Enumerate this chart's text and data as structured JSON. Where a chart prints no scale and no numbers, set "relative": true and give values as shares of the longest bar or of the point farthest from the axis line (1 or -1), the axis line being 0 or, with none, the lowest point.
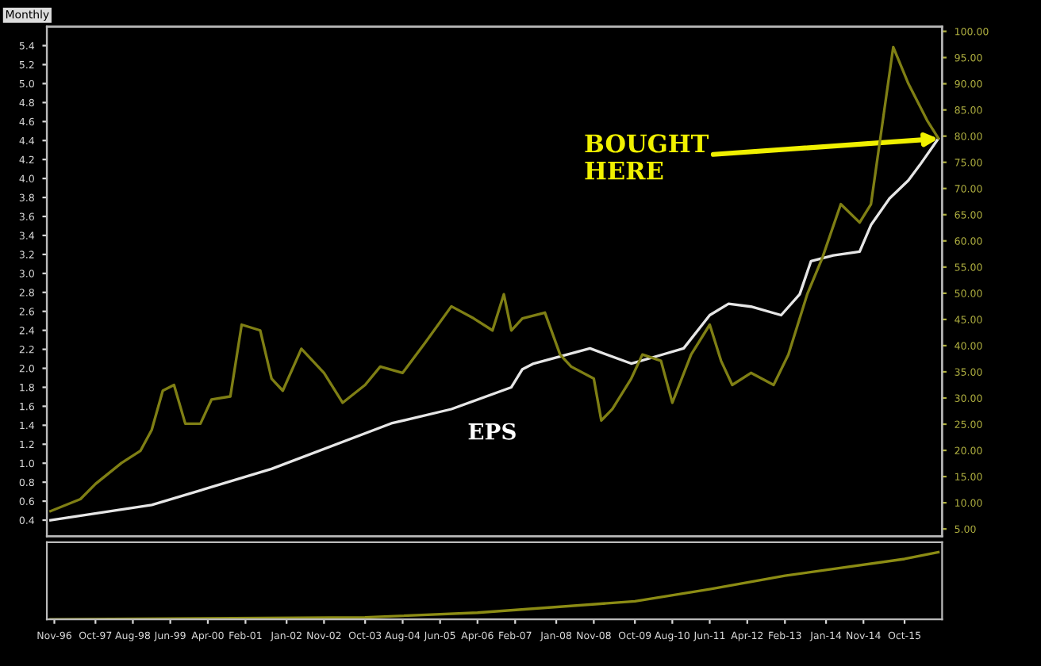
{
  "chart_data": [
    {
      "type": "line",
      "xlim": [
        "1996-09",
        "2016-08"
      ],
      "tick_labels": "y",
      "legend": false,
      "grid": false,
      "ylim": [
        0.23,
        5.6
      ],
      "yticks": [
        0.4,
        0.6,
        0.8,
        {
          "value": 1,
          "label": "1.0"
        },
        1.2,
        1.4,
        1.6,
        1.8,
        {
          "value": 2,
          "label": "2.0"
        },
        2.2,
        2.4,
        2.6,
        2.8,
        {
          "value": 3,
          "label": "3.0"
        },
        3.2,
        3.4,
        3.6,
        3.8,
        {
          "value": 4,
          "label": "4.0"
        },
        4.2,
        4.4,
        4.6,
        4.8,
        {
          "value": 5,
          "label": "5.0"
        },
        5.2,
        5.4
      ],
      "y2lim": [
        3.6,
        100.9
      ],
      "y2ticks": [
        {
          "value": 5,
          "label": "5.00"
        },
        {
          "value": 10,
          "label": "10.00"
        },
        {
          "value": 15,
          "label": "15.00"
        },
        {
          "value": 20,
          "label": "20.00"
        },
        {
          "value": 25,
          "label": "25.00"
        },
        {
          "value": 30,
          "label": "30.00"
        },
        {
          "value": 35,
          "label": "35.00"
        },
        {
          "value": 40,
          "label": "40.00"
        },
        {
          "value": 45,
          "label": "45.00"
        },
        {
          "value": 50,
          "label": "50.00"
        },
        {
          "value": 55,
          "label": "55.00"
        },
        {
          "value": 60,
          "label": "60.00"
        },
        {
          "value": 65,
          "label": "65.00"
        },
        {
          "value": 70,
          "label": "70.00"
        },
        {
          "value": 75,
          "label": "75.00"
        },
        {
          "value": 80,
          "label": "80.00"
        },
        {
          "value": 85,
          "label": "85.00"
        },
        {
          "value": 90,
          "label": "90.00"
        },
        {
          "value": 95,
          "label": "95.00"
        },
        {
          "value": 100,
          "label": "100.00"
        }
      ],
      "series": [
        {
          "color": "#7f7f14",
          "axis": "y2",
          "x": [
            "1996-10",
            "1997-06",
            "1997-10",
            "1998-05",
            "1998-10",
            "1999-01",
            "1999-04",
            "1999-07",
            "1999-10",
            "2000-02",
            "2000-05",
            "2000-10",
            "2001-01",
            "2001-06",
            "2001-09",
            "2001-12",
            "2002-05",
            "2002-11",
            "2003-04",
            "2003-10",
            "2004-02",
            "2004-08",
            "2005-02",
            "2005-09",
            "2006-03",
            "2006-08",
            "2006-11",
            "2007-01",
            "2007-04",
            "2007-10",
            "2008-02",
            "2008-05",
            "2008-11",
            "2009-01",
            "2009-04",
            "2009-09",
            "2009-12",
            "2010-05",
            "2010-08",
            "2011-01",
            "2011-06",
            "2011-09",
            "2011-12",
            "2012-05",
            "2012-11",
            "2013-03",
            "2013-08",
            "2013-12",
            "2014-05",
            "2014-10",
            "2015-01",
            "2015-07",
            "2015-11",
            "2016-04",
            "2016-07"
          ],
          "values": [
            8.4,
            10.7,
            13.6,
            17.6,
            19.9,
            23.9,
            31.4,
            32.5,
            25.1,
            25.1,
            29.7,
            30.3,
            44.0,
            42.9,
            33.7,
            31.4,
            39.4,
            34.8,
            29.1,
            32.5,
            36.0,
            34.8,
            40.6,
            47.5,
            45.2,
            42.9,
            49.8,
            42.9,
            45.2,
            46.3,
            38.3,
            36.0,
            33.7,
            25.7,
            27.9,
            33.7,
            38.3,
            37.1,
            29.1,
            38.3,
            44.0,
            37.1,
            32.5,
            34.8,
            32.5,
            38.3,
            49.8,
            56.7,
            67.0,
            63.5,
            67.0,
            97.0,
            90.0,
            83.0,
            79.6
          ]
        },
        {
          "color": "#e6e6e6",
          "axis": "y",
          "x": [
            "1996-10",
            "1999-01",
            "2001-09",
            "2004-05",
            "2005-09",
            "2007-01",
            "2007-04",
            "2007-07",
            "2008-10",
            "2009-09",
            "2010-05",
            "2010-11",
            "2011-06",
            "2011-11",
            "2012-05",
            "2013-01",
            "2013-06",
            "2013-09",
            "2014-03",
            "2014-10",
            "2015-01",
            "2015-06",
            "2015-11",
            "2016-02",
            "2016-07"
          ],
          "values": [
            0.4,
            0.56,
            0.94,
            1.42,
            1.57,
            1.8,
            1.99,
            2.05,
            2.21,
            2.05,
            2.14,
            2.21,
            2.56,
            2.68,
            2.65,
            2.56,
            2.78,
            3.13,
            3.19,
            3.23,
            3.51,
            3.79,
            3.98,
            4.14,
            4.42
          ]
        }
      ],
      "annotations": [
        "Monthly",
        {
          "text": "BOUGHT\nHERE",
          "x": "2016-07",
          "y": 4.42
        },
        "EPS"
      ]
    },
    {
      "type": "line",
      "relative": true,
      "color": "#8c8c14",
      "tick_labels": "x",
      "xlim": [
        "1996-09",
        "2016-08"
      ],
      "x": [
        "1996-10",
        "2003-10",
        "2006-04",
        "2009-10",
        "2011-06",
        "2013-02",
        "2015-10",
        "2016-07"
      ],
      "values": [
        0.0,
        0.03,
        0.1,
        0.27,
        0.45,
        0.65,
        0.9,
        1.0
      ],
      "xticks": [
        {
          "value": "1996-11",
          "label": "Nov-96"
        },
        {
          "value": "1997-10",
          "label": "Oct-97"
        },
        {
          "value": "1998-08",
          "label": "Aug-98"
        },
        {
          "value": "1999-06",
          "label": "Jun-99"
        },
        {
          "value": "2000-04",
          "label": "Apr-00"
        },
        {
          "value": "2001-02",
          "label": "Feb-01"
        },
        {
          "value": "2002-01",
          "label": "Jan-02"
        },
        {
          "value": "2002-11",
          "label": "Nov-02"
        },
        {
          "value": "2003-10",
          "label": "Oct-03"
        },
        {
          "value": "2004-08",
          "label": "Aug-04"
        },
        {
          "value": "2005-06",
          "label": "Jun-05"
        },
        {
          "value": "2006-04",
          "label": "Apr-06"
        },
        {
          "value": "2007-02",
          "label": "Feb-07"
        },
        {
          "value": "2008-01",
          "label": "Jan-08"
        },
        {
          "value": "2008-11",
          "label": "Nov-08"
        },
        {
          "value": "2009-10",
          "label": "Oct-09"
        },
        {
          "value": "2010-08",
          "label": "Aug-10"
        },
        {
          "value": "2011-06",
          "label": "Jun-11"
        },
        {
          "value": "2012-04",
          "label": "Apr-12"
        },
        {
          "value": "2013-02",
          "label": "Feb-13"
        },
        {
          "value": "2014-01",
          "label": "Jan-14"
        },
        {
          "value": "2014-11",
          "label": "Nov-14"
        },
        {
          "value": "2015-10",
          "label": "Oct-15"
        }
      ]
    }
  ]
}
